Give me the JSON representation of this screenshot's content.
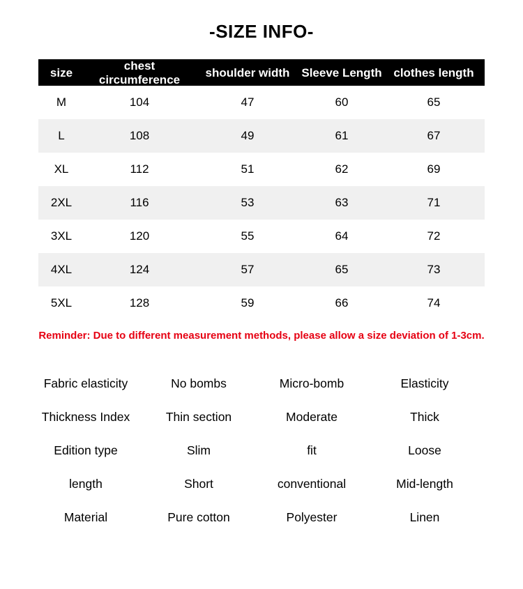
{
  "title": "-SIZE INFO-",
  "colors": {
    "header_bg": "#000000",
    "header_text": "#ffffff",
    "row_alt_bg": "#f0f0f0",
    "highlight_bg": "#e5e5e5",
    "reminder_text": "#e60012"
  },
  "table": {
    "headers": [
      "size",
      "chest circumference",
      "shoulder width",
      "Sleeve Length",
      "clothes length"
    ],
    "rows": [
      [
        "M",
        "104",
        "47",
        "60",
        "65"
      ],
      [
        "L",
        "108",
        "49",
        "61",
        "67"
      ],
      [
        "XL",
        "112",
        "51",
        "62",
        "69"
      ],
      [
        "2XL",
        "116",
        "53",
        "63",
        "71"
      ],
      [
        "3XL",
        "120",
        "55",
        "64",
        "72"
      ],
      [
        "4XL",
        "124",
        "57",
        "65",
        "73"
      ],
      [
        "5XL",
        "128",
        "59",
        "66",
        "74"
      ]
    ]
  },
  "reminder": "Reminder: Due to different measurement methods, please allow a size deviation of 1-3cm.",
  "attributes": {
    "rows": [
      {
        "label": "Fabric elasticity",
        "options": [
          {
            "text": "No bombs",
            "highlighted": false
          },
          {
            "text": "Micro-bomb",
            "highlighted": true
          },
          {
            "text": "Elasticity",
            "highlighted": false
          }
        ]
      },
      {
        "label": "Thickness Index",
        "options": [
          {
            "text": "Thin section",
            "highlighted": false
          },
          {
            "text": "Moderate",
            "highlighted": true
          },
          {
            "text": "Thick",
            "highlighted": false
          }
        ]
      },
      {
        "label": "Edition type",
        "options": [
          {
            "text": "Slim",
            "highlighted": false
          },
          {
            "text": "fit",
            "highlighted": true
          },
          {
            "text": "Loose",
            "highlighted": false
          }
        ]
      },
      {
        "label": "length",
        "options": [
          {
            "text": "Short",
            "highlighted": false
          },
          {
            "text": "conventional",
            "highlighted": false
          },
          {
            "text": "Mid-length",
            "highlighted": false
          }
        ]
      },
      {
        "label": "Material",
        "options": [
          {
            "text": "Pure cotton",
            "highlighted": true
          },
          {
            "text": "Polyester",
            "highlighted": false
          },
          {
            "text": "Linen",
            "highlighted": false
          }
        ]
      }
    ]
  }
}
